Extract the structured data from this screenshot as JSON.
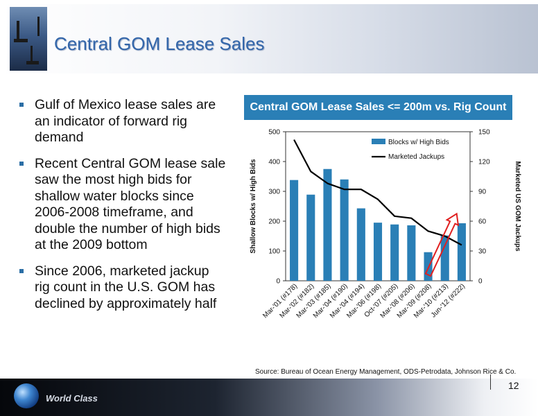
{
  "slide": {
    "title": "Central GOM Lease Sales",
    "bullets": [
      "Gulf of Mexico lease sales are an indicator of forward rig demand",
      "Recent Central GOM lease sale saw the most high bids for shallow water blocks since 2006-2008 timeframe, and double the number of high bids at the 2009 bottom",
      "Since 2006, marketed jackup rig count in the U.S. GOM has declined by approximately half"
    ],
    "chart_header": "Central GOM Lease Sales <= 200m vs. Rig Count",
    "source": "Source: Bureau of Ocean Energy Management, ODS-Petrodata, Johnson Rice & Co.",
    "footer_text": "World Class",
    "page_number": "12"
  },
  "colors": {
    "title": "#3366aa",
    "bars": "#2a7fb6",
    "line": "#000000",
    "arrow": "#e02020",
    "header": "#2a7fb6"
  },
  "chart_data": {
    "type": "bar",
    "categories": [
      "Mar-'01 (#178)",
      "Mar-'02 (#182)",
      "Mar-'03 (#185)",
      "Mar-'04 (#190)",
      "Mar-'04 (#194)",
      "Mar-'06 (#198)",
      "Oct-'07 (#205)",
      "Mar-'08 (#206)",
      "Mar-'09 (#208)",
      "Mar-'10 (#213)",
      "Jun-'12 (#222)"
    ],
    "series": [
      {
        "name": "Blocks w/ High Bids",
        "axis": "left",
        "type": "bar",
        "values": [
          338,
          289,
          375,
          340,
          243,
          195,
          189,
          186,
          96,
          152,
          193
        ]
      },
      {
        "name": "Marketed Jackups",
        "axis": "right",
        "type": "line",
        "values": [
          142,
          110,
          98,
          92,
          92,
          82,
          65,
          63,
          50,
          45,
          36
        ]
      }
    ],
    "ylabel": "Shallow Blocks w/ High Bids",
    "y2label": "Marketed US GOM Jackups",
    "ylim": [
      0,
      500
    ],
    "y2lim": [
      0,
      150
    ],
    "yticks": [
      "0",
      "100",
      "200",
      "300",
      "400",
      "500"
    ],
    "y2ticks": [
      "0",
      "30",
      "60",
      "90",
      "120",
      "150"
    ],
    "legend": "top-right",
    "annotation": "red arrow pointing up over Mar-'09 to Jun-'12 bars"
  }
}
